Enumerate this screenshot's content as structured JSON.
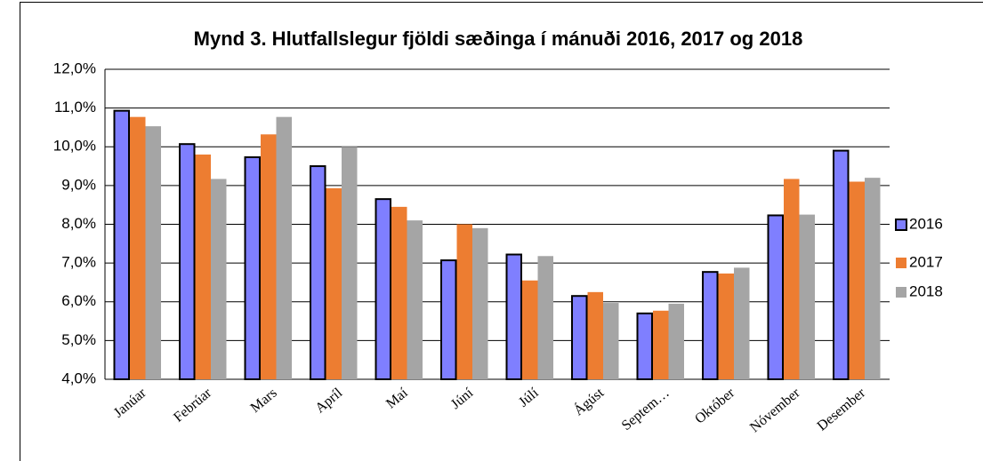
{
  "chart_data": {
    "type": "bar",
    "title": "Mynd 3.  Hlutfallslegur fjöldi sæðinga í mánuði 2016, 2017 og 2018",
    "categories": [
      "Janúar",
      "Febrúar",
      "Mars",
      "Apríl",
      "Maí",
      "Júní",
      "Júlí",
      "Ágúst",
      "Septem…",
      "Október",
      "Nóvember",
      "Desember"
    ],
    "series": [
      {
        "name": "2016",
        "color": "#7f7fff",
        "edgecolor": "#000000",
        "values": [
          10.93,
          10.07,
          9.73,
          9.5,
          8.65,
          7.07,
          7.22,
          6.15,
          5.7,
          6.77,
          8.23,
          9.9
        ]
      },
      {
        "name": "2017",
        "color": "#ed7d31",
        "values": [
          10.77,
          9.8,
          10.32,
          8.93,
          8.45,
          8.0,
          6.55,
          6.25,
          5.77,
          6.73,
          9.17,
          9.1
        ]
      },
      {
        "name": "2018",
        "color": "#a5a5a5",
        "values": [
          10.53,
          9.17,
          10.77,
          10.0,
          8.1,
          7.9,
          7.18,
          5.97,
          5.95,
          6.88,
          8.25,
          9.2
        ]
      }
    ],
    "ylim": [
      4,
      12
    ],
    "yticks": [
      {
        "value": 4,
        "label": "4,0%"
      },
      {
        "value": 5,
        "label": "5,0%"
      },
      {
        "value": 6,
        "label": "6,0%"
      },
      {
        "value": 7,
        "label": "7,0%"
      },
      {
        "value": 8,
        "label": "8,0%"
      },
      {
        "value": 9,
        "label": "9,0%"
      },
      {
        "value": 10,
        "label": "10,0%"
      },
      {
        "value": 11,
        "label": "11,0%"
      },
      {
        "value": 12,
        "label": "12,0%"
      }
    ],
    "grid": true,
    "legend": "right"
  }
}
